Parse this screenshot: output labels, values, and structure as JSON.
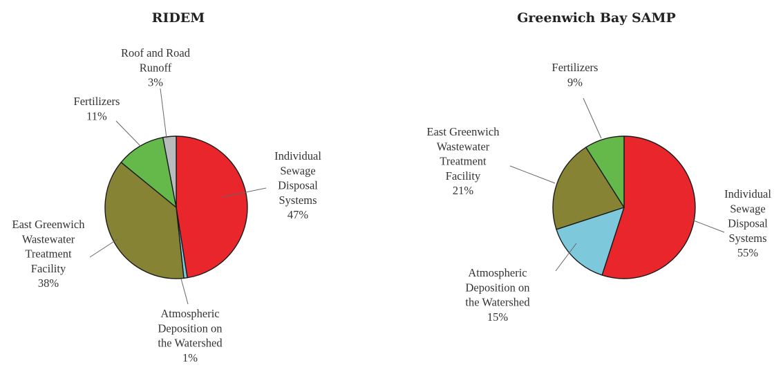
{
  "chart_data": [
    {
      "type": "pie",
      "title": "RIDEM",
      "slices": [
        {
          "label_lines": [
            "Individual",
            "Sewage",
            "Disposal",
            "Systems"
          ],
          "pct_label": "47%",
          "value": 47.5,
          "color": "#e8262b"
        },
        {
          "label_lines": [
            "Atmospheric",
            "Deposition on",
            "the Watershed"
          ],
          "pct_label": "1%",
          "value": 0.8,
          "color": "#7ec8dc"
        },
        {
          "label_lines": [
            "East Greenwich",
            "Wastewater",
            "Treatment",
            "Facility"
          ],
          "pct_label": "38%",
          "value": 37.6,
          "color": "#868434"
        },
        {
          "label_lines": [
            "Fertilizers"
          ],
          "pct_label": "11%",
          "value": 11.1,
          "color": "#64b94a"
        },
        {
          "label_lines": [
            "Roof and Road",
            "Runoff"
          ],
          "pct_label": "3%",
          "value": 3.0,
          "color": "#b9bcbd"
        }
      ]
    },
    {
      "type": "pie",
      "title": "Greenwich Bay SAMP",
      "slices": [
        {
          "label_lines": [
            "Individual",
            "Sewage",
            "Disposal",
            "Systems"
          ],
          "pct_label": "55%",
          "value": 55,
          "color": "#e8262b"
        },
        {
          "label_lines": [
            "Atmospheric",
            "Deposition on",
            "the Watershed"
          ],
          "pct_label": "15%",
          "value": 15,
          "color": "#7ec8dc"
        },
        {
          "label_lines": [
            "East Greenwich",
            "Wastewater",
            "Treatment",
            "Facility"
          ],
          "pct_label": "21%",
          "value": 21,
          "color": "#868434"
        },
        {
          "label_lines": [
            "Fertilizers"
          ],
          "pct_label": "9%",
          "value": 9,
          "color": "#64b94a"
        }
      ]
    }
  ]
}
